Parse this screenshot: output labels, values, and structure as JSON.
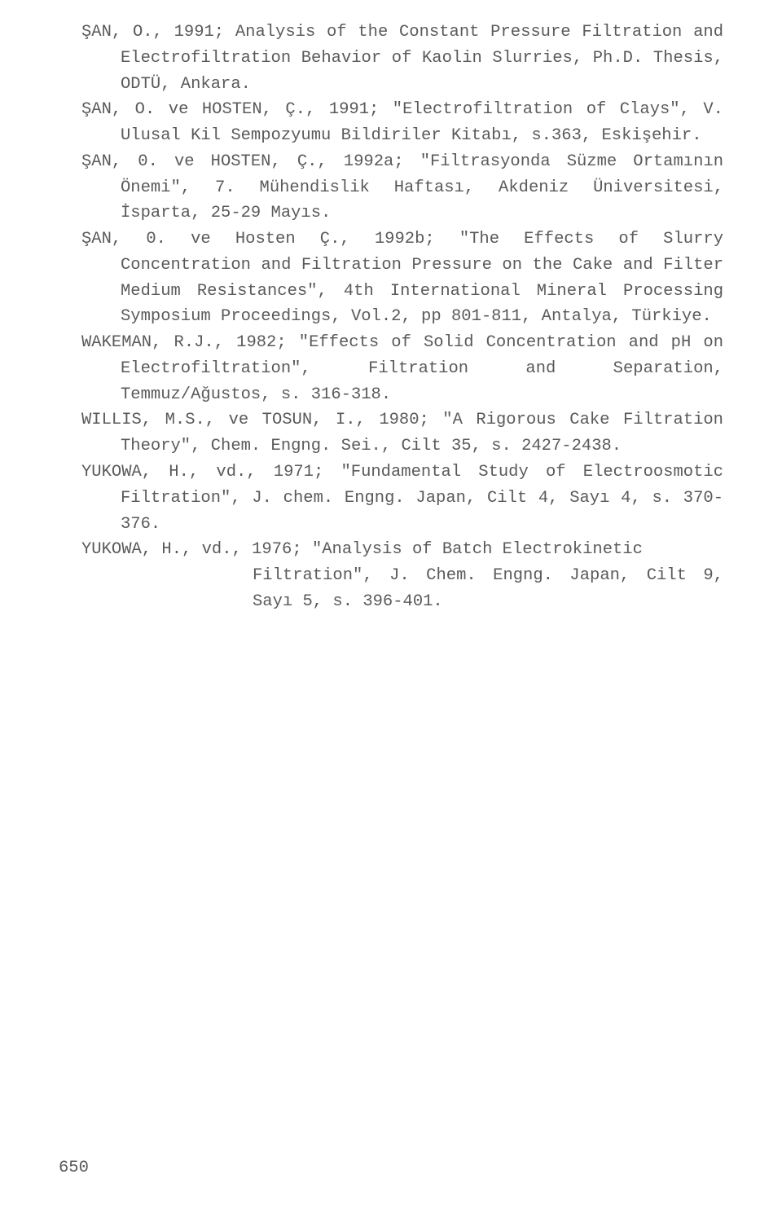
{
  "text_color": "#5a5a5a",
  "background_color": "#ffffff",
  "font_family": "Courier New",
  "font_size_pt": 15,
  "page_number": "650",
  "references": [
    {
      "lines": [
        "ŞAN, O., 1991; Analysis of the Constant Pressure Filtration and Electrofiltration Behavior of Kaolin Slurries, Ph.D. Thesis, ODTÜ, Ankara."
      ],
      "class": "hang"
    },
    {
      "lines": [
        "ŞAN, O. ve HOSTEN, Ç., 1991; \"Electrofiltration of Clays\", V. Ulusal Kil Sempozyumu Bildiriler Kitabı, s.363, Eskişehir."
      ],
      "class": "hang"
    },
    {
      "lines": [
        "ŞAN, 0. ve HOSTEN, Ç., 1992a; \"Filtrasyonda Süzme Ortamının Önemi\", 7. Mühendislik Haftası, Akdeniz Üniversitesi, İsparta, 25-29 Mayıs."
      ],
      "class": "hang"
    },
    {
      "lines": [
        "ŞAN, 0. ve Hosten Ç., 1992b; \"The Effects of Slurry Concentration and Filtration Pressure on the Cake and Filter Medium Resistances\", 4th International Mineral Processing Symposium Proceedings, Vol.2, pp 801-811, Antalya, Türkiye."
      ],
      "class": "hang"
    },
    {
      "lines": [
        "WAKEMAN, R.J., 1982; \"Effects of Solid Concentration and pH on Electrofiltration\", Filtration and Separation, Temmuz/Ağustos, s. 316-318."
      ],
      "class": "hang"
    },
    {
      "lines": [
        "WILLIS, M.S., ve TOSUN, I., 1980; \"A Rigorous Cake Filtration Theory\", Chem. Engng. Sei., Cilt 35, s. 2427-2438."
      ],
      "class": "hang"
    },
    {
      "lines": [
        "YUKOWA, H., vd., 1971; \"Fundamental Study of Electroosmotic Filtration\", J. chem. Engng. Japan, Cilt 4, Sayı 4, s. 370-376."
      ],
      "class": "hang"
    },
    {
      "first": "YUKOWA, H., vd., 1976; \"Analysis of Batch Electrokinetic",
      "rest": "Filtration\", J. Chem. Engng. Japan, Cilt 9, Sayı 5, s. 396-401.",
      "class": "split"
    }
  ]
}
